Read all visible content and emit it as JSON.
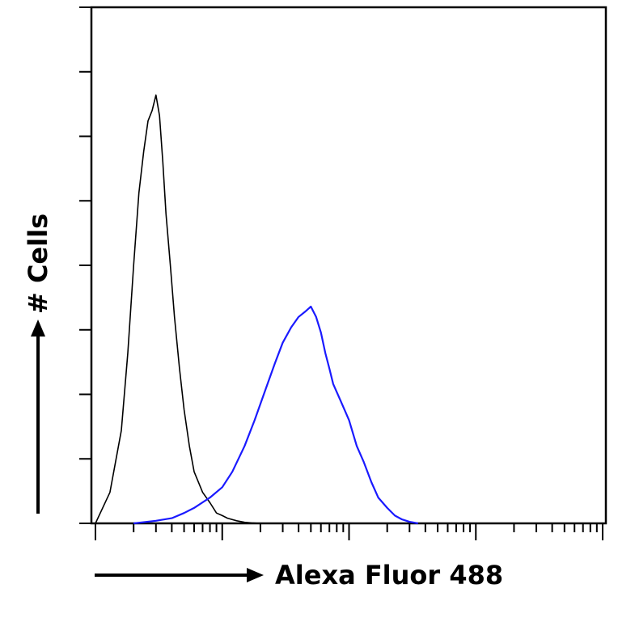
{
  "chart_data": {
    "type": "line",
    "xlabel": "Alexa Fluor 488",
    "ylabel": "# Cells",
    "x_scale": "log",
    "xlim": [
      1,
      10000
    ],
    "ylim": [
      0,
      1.0
    ],
    "x_minor_ticks_per_decade": 9,
    "y_ticks": [
      0,
      0.125,
      0.25,
      0.375,
      0.5,
      0.625,
      0.75,
      0.875,
      1.0
    ],
    "grid": false,
    "legend": "none",
    "series": [
      {
        "color": "#000000",
        "x": [
          1.0,
          1.3,
          1.6,
          1.8,
          2.0,
          2.2,
          2.4,
          2.6,
          2.8,
          3.0,
          3.2,
          3.4,
          3.6,
          3.9,
          4.2,
          4.6,
          5.0,
          5.5,
          6.0,
          7.0,
          8.0,
          9.0,
          10.0,
          11.0,
          13.0,
          15.0,
          17.0,
          20.0
        ],
        "y": [
          0.0,
          0.06,
          0.18,
          0.33,
          0.5,
          0.64,
          0.72,
          0.78,
          0.8,
          0.83,
          0.79,
          0.7,
          0.6,
          0.5,
          0.4,
          0.3,
          0.22,
          0.15,
          0.1,
          0.06,
          0.04,
          0.02,
          0.015,
          0.01,
          0.005,
          0.002,
          0.001,
          0.0
        ]
      },
      {
        "color": "#1a1aff",
        "x": [
          2.0,
          3.0,
          4.0,
          5.0,
          6.0,
          8.0,
          10.0,
          12.0,
          15.0,
          18.0,
          22.0,
          26.0,
          30.0,
          35.0,
          40.0,
          45.0,
          50.0,
          55.0,
          60.0,
          65.0,
          70.0,
          75.0,
          85.0,
          100.0,
          115.0,
          130.0,
          150.0,
          170.0,
          200.0,
          230.0,
          260.0,
          300.0,
          350.0
        ],
        "y": [
          0.0,
          0.005,
          0.01,
          0.02,
          0.03,
          0.05,
          0.07,
          0.1,
          0.15,
          0.2,
          0.26,
          0.31,
          0.35,
          0.38,
          0.4,
          0.41,
          0.42,
          0.4,
          0.37,
          0.33,
          0.3,
          0.27,
          0.24,
          0.2,
          0.15,
          0.12,
          0.08,
          0.05,
          0.03,
          0.015,
          0.008,
          0.003,
          0.0
        ]
      }
    ]
  }
}
